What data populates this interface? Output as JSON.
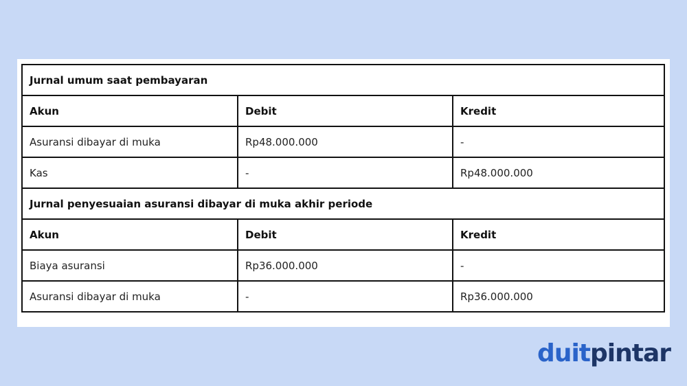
{
  "sections": [
    {
      "title": "Jurnal umum saat pembayaran",
      "headers": [
        "Akun",
        "Debit",
        "Kredit"
      ],
      "rows": [
        [
          "Asuransi dibayar di muka",
          "Rp48.000.000",
          "-"
        ],
        [
          "Kas",
          "-",
          "Rp48.000.000"
        ]
      ]
    },
    {
      "title": "Jurnal penyesuaian asuransi dibayar di muka akhir periode",
      "headers": [
        "Akun",
        "Debit",
        "Kredit"
      ],
      "rows": [
        [
          "Biaya asuransi",
          "Rp36.000.000",
          "-"
        ],
        [
          "Asuransi dibayar di muka",
          "-",
          "Rp36.000.000"
        ]
      ]
    }
  ],
  "logo": {
    "part1": "duit",
    "part2": "pintar",
    "colors": {
      "part1": "#2a63c9",
      "part2": "#1d3566",
      "dots": "#e53935"
    }
  }
}
